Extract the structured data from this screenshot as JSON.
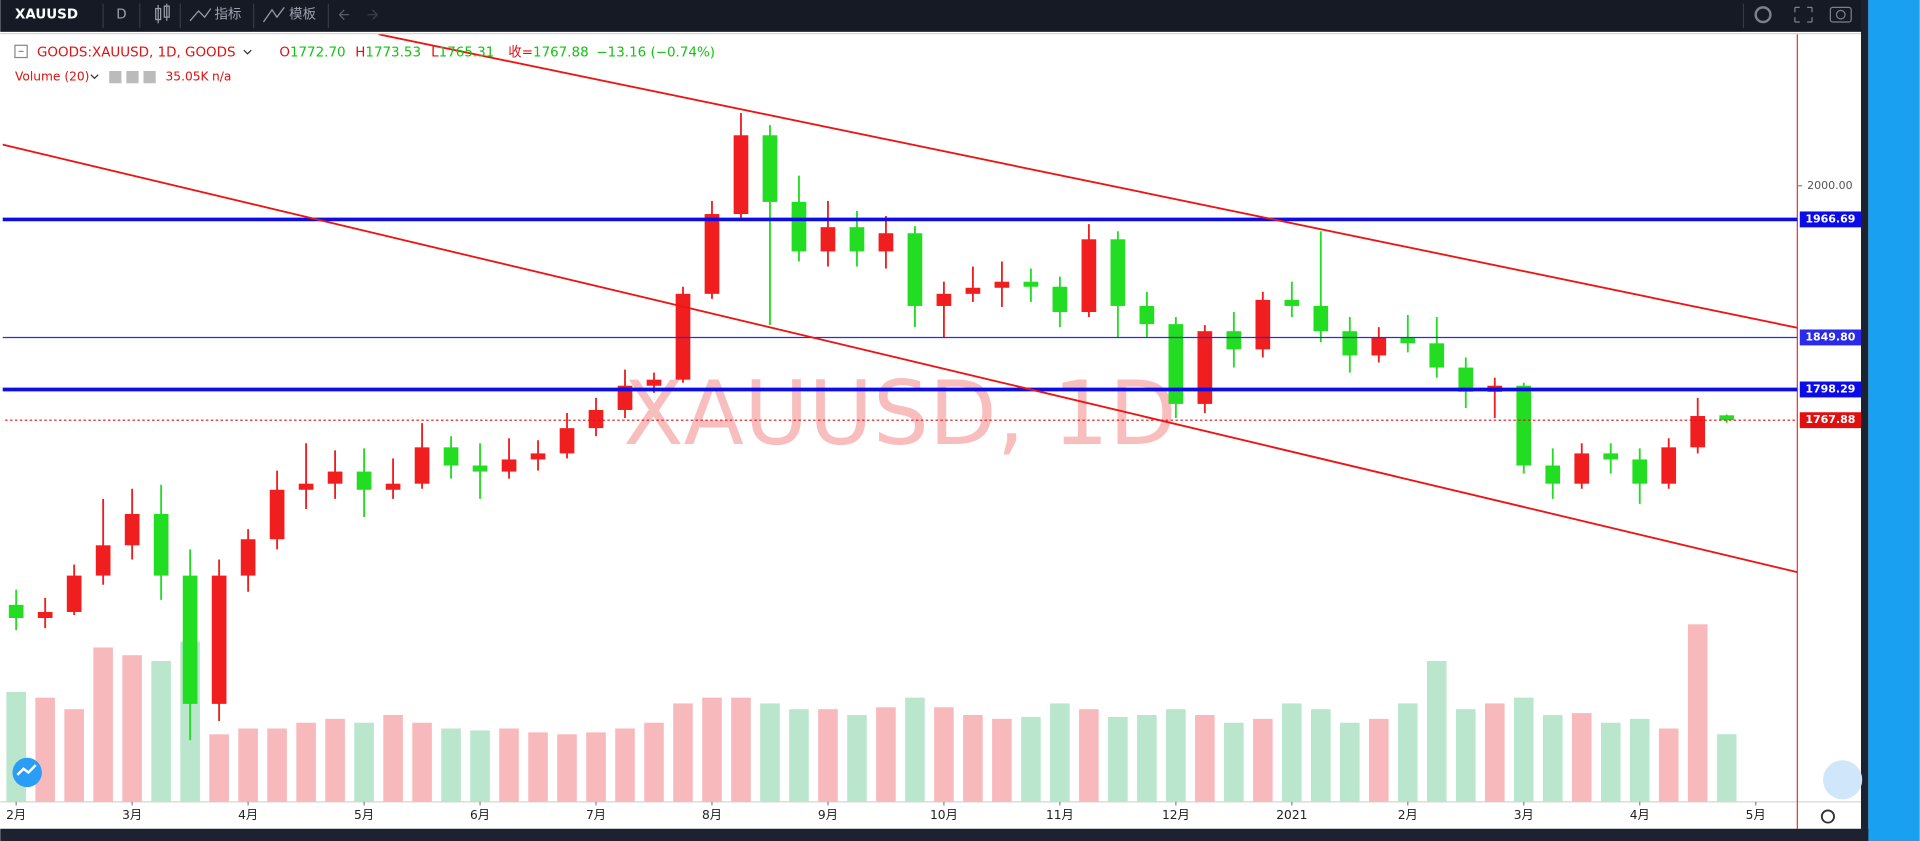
{
  "header": {
    "symbol": "XAUUSD",
    "interval": "D",
    "indicators": "指标",
    "templates": "模板"
  },
  "legend": {
    "title": "GOODS:XAUUSD, 1D, GOODS",
    "ohlc": [
      {
        "label": "O",
        "value": "1772.70"
      },
      {
        "label": "H",
        "value": "1773.53"
      },
      {
        "label": "L",
        "value": "1765.31"
      },
      {
        "label": "收=",
        "value": "1767.88"
      }
    ],
    "change": "−13.16 (−0.74%)",
    "volume_title": "Volume (20)",
    "volume_value": "35.05K",
    "volume_na": "n/a"
  },
  "chart_data": {
    "type": "candlestick",
    "watermark": "XAUUSD, 1D",
    "categories": [
      "2月",
      null,
      null,
      null,
      "3月",
      null,
      null,
      null,
      "4月",
      null,
      null,
      null,
      "5月",
      null,
      null,
      null,
      "6月",
      null,
      null,
      null,
      "7月",
      null,
      null,
      null,
      "8月",
      null,
      null,
      null,
      "9月",
      null,
      null,
      null,
      "10月",
      null,
      null,
      null,
      "11月",
      null,
      null,
      null,
      "12月",
      null,
      null,
      null,
      "2021",
      null,
      null,
      null,
      "2月",
      null,
      null,
      null,
      "3月",
      null,
      null,
      null,
      "4月",
      null,
      null,
      null,
      "5月"
    ],
    "open": [
      1585,
      1572,
      1578,
      1614,
      1644,
      1675,
      1614,
      1487,
      1614,
      1650,
      1699,
      1705,
      1717,
      1699,
      1705,
      1741,
      1723,
      1717,
      1729,
      1735,
      1760,
      1778,
      1802,
      1808,
      1893,
      1972,
      2050,
      1984,
      1935,
      1959,
      1935,
      1953,
      1881,
      1893,
      1899,
      1905,
      1900,
      1875,
      1947,
      1881,
      1863,
      1784,
      1856,
      1838,
      1887,
      1881,
      1856,
      1832,
      1850,
      1844,
      1820,
      1796,
      1802,
      1723,
      1705,
      1735,
      1729,
      1705,
      1741,
      1772.7,
      null
    ],
    "high": [
      1600,
      1592,
      1625,
      1690,
      1700,
      1704,
      1640,
      1630,
      1660,
      1718,
      1745,
      1738,
      1740,
      1730,
      1765,
      1752,
      1745,
      1750,
      1748,
      1775,
      1790,
      1818,
      1815,
      1900,
      1985,
      2072,
      2060,
      2010,
      1985,
      1975,
      1970,
      1960,
      1905,
      1920,
      1925,
      1918,
      1910,
      1962,
      1955,
      1895,
      1870,
      1862,
      1875,
      1895,
      1905,
      1955,
      1870,
      1860,
      1872,
      1870,
      1830,
      1810,
      1805,
      1740,
      1745,
      1745,
      1740,
      1750,
      1790,
      1773.53,
      null
    ],
    "low": [
      1560,
      1562,
      1575,
      1605,
      1630,
      1590,
      1451,
      1470,
      1598,
      1640,
      1680,
      1690,
      1672,
      1690,
      1700,
      1710,
      1690,
      1710,
      1718,
      1730,
      1752,
      1770,
      1795,
      1805,
      1888,
      1965,
      1862,
      1925,
      1920,
      1920,
      1918,
      1860,
      1850,
      1885,
      1880,
      1885,
      1860,
      1870,
      1850,
      1850,
      1770,
      1775,
      1820,
      1830,
      1870,
      1845,
      1815,
      1825,
      1835,
      1810,
      1780,
      1770,
      1715,
      1690,
      1700,
      1715,
      1685,
      1700,
      1735,
      1765.31,
      null
    ],
    "close": [
      1572,
      1578,
      1614,
      1644,
      1675,
      1614,
      1487,
      1614,
      1650,
      1699,
      1705,
      1717,
      1699,
      1705,
      1741,
      1723,
      1717,
      1729,
      1735,
      1760,
      1778,
      1802,
      1808,
      1893,
      1972,
      2050,
      1984,
      1935,
      1959,
      1935,
      1953,
      1881,
      1893,
      1899,
      1905,
      1900,
      1875,
      1947,
      1881,
      1863,
      1784,
      1856,
      1838,
      1887,
      1881,
      1856,
      1832,
      1850,
      1844,
      1820,
      1796,
      1802,
      1723,
      1705,
      1735,
      1729,
      1705,
      1741,
      1772,
      1767.88,
      null
    ],
    "volume": [
      57,
      54,
      48,
      80,
      76,
      73,
      83,
      35,
      38,
      38,
      41,
      43,
      41,
      45,
      41,
      38,
      37,
      38,
      36,
      35,
      36,
      38,
      41,
      51,
      54,
      54,
      51,
      48,
      48,
      45,
      49,
      54,
      49,
      45,
      43,
      44,
      51,
      48,
      44,
      45,
      48,
      45,
      41,
      43,
      51,
      48,
      41,
      43,
      51,
      73,
      48,
      51,
      54,
      45,
      46,
      41,
      43,
      38,
      92,
      35.05,
      null
    ],
    "up_color": "#f01e1e",
    "down_color": "#22dd22",
    "up_volume_color": "#f7b9bc",
    "down_volume_color": "#b9e6cc",
    "ylim": [
      1390,
      2150
    ],
    "yticks": [
      {
        "value": 2000,
        "label": "2000.00"
      }
    ],
    "hlines": [
      {
        "value": 1966.69,
        "color": "#0c0ce6",
        "width": 3
      },
      {
        "value": 1849.8,
        "label": "1849.80",
        "color": "#2a2ae8",
        "width": 1
      },
      {
        "value": 1798.29,
        "color": "#0c0ce6",
        "width": 3
      }
    ],
    "last_price": {
      "value": 1767.88,
      "color": "#e01010"
    },
    "trend_lines": [
      {
        "x": [
          12.5,
          61.5
        ],
        "y": [
          2150,
          1859
        ],
        "color": "#ee1414"
      },
      {
        "x": [
          -0.5,
          61.5
        ],
        "y": [
          2041,
          1617
        ],
        "color": "#ee1414"
      }
    ]
  }
}
